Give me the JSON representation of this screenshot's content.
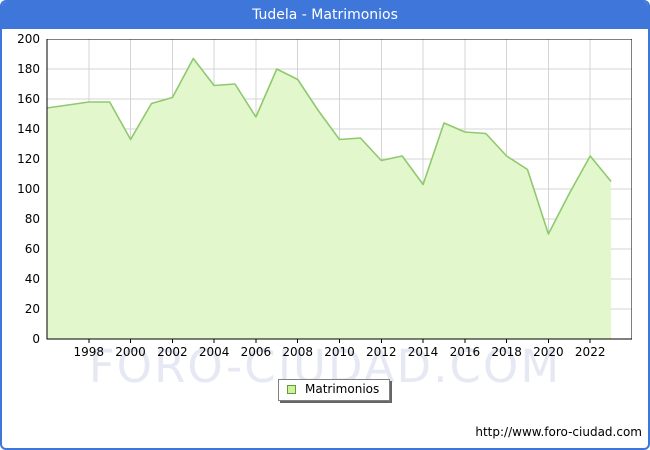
{
  "title": "Tudela - Matrimonios",
  "watermark": "FORO-CIUDAD.COM",
  "legend": {
    "label": "Matrimonios"
  },
  "footer": {
    "url": "http://www.foro-ciudad.com"
  },
  "colors": {
    "frame_blue": "#3e77d9",
    "area_fill": "#e2f7cc",
    "line_green": "#8fc96e",
    "grid": "#d4d4d4",
    "plot_border": "#000000",
    "watermark": "#e6e9f4",
    "legend_swatch_fill": "#cdf29c",
    "legend_swatch_border": "#669933"
  },
  "chart_data": {
    "type": "area",
    "title": "Tudela - Matrimonios",
    "x": [
      1996,
      1997,
      1998,
      1999,
      2000,
      2001,
      2002,
      2003,
      2004,
      2005,
      2006,
      2007,
      2008,
      2009,
      2010,
      2011,
      2012,
      2013,
      2014,
      2015,
      2016,
      2017,
      2018,
      2019,
      2020,
      2021,
      2022,
      2023
    ],
    "values": [
      154,
      156,
      158,
      158,
      133,
      157,
      161,
      187,
      169,
      170,
      148,
      180,
      173,
      152,
      133,
      134,
      119,
      122,
      103,
      144,
      138,
      137,
      122,
      113,
      70,
      97,
      122,
      105
    ],
    "series_name": "Matrimonios",
    "ylim": [
      0,
      200
    ],
    "ytick_step": 20,
    "yticks": [
      0,
      20,
      40,
      60,
      80,
      100,
      120,
      140,
      160,
      180,
      200
    ],
    "xtick_labels": [
      1998,
      2000,
      2002,
      2004,
      2006,
      2008,
      2010,
      2012,
      2014,
      2016,
      2018,
      2020,
      2022
    ],
    "grid": true,
    "legend_position": "bottom-center",
    "xlabel": "",
    "ylabel": ""
  }
}
